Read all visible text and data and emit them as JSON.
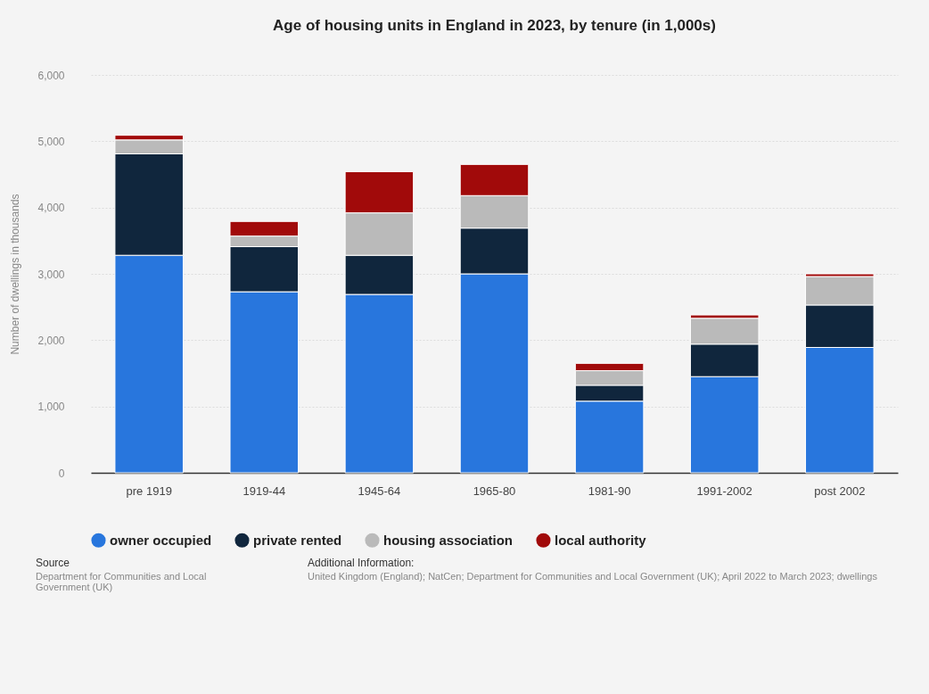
{
  "chart_data": {
    "type": "bar",
    "title": "Age of housing units in England in 2023, by tenure (in 1,000s)",
    "ylabel": "Number of dwellings in thousands",
    "categories": [
      "pre 1919",
      "1919-44",
      "1945-64",
      "1965-80",
      "1981-90",
      "1991-2002",
      "post 2002"
    ],
    "series": [
      {
        "name": "owner occupied",
        "color": "#2876dd",
        "values": [
          3280,
          2730,
          2690,
          3000,
          1080,
          1450,
          1890
        ]
      },
      {
        "name": "private rented",
        "color": "#10263d",
        "values": [
          1530,
          680,
          590,
          690,
          240,
          490,
          640
        ]
      },
      {
        "name": "housing association",
        "color": "#bababa",
        "values": [
          210,
          160,
          640,
          490,
          220,
          390,
          430
        ]
      },
      {
        "name": "local authority",
        "color": "#a10a0a",
        "values": [
          70,
          220,
          620,
          470,
          110,
          50,
          40
        ]
      }
    ],
    "stacked": true,
    "ylim": [
      0,
      6000
    ],
    "yticks": [
      {
        "value": 0,
        "label": "0"
      },
      {
        "value": 1000,
        "label": "1,000"
      },
      {
        "value": 2000,
        "label": "2,000"
      },
      {
        "value": 3000,
        "label": "3,000"
      },
      {
        "value": 4000,
        "label": "4,000"
      },
      {
        "value": 5000,
        "label": "5,000"
      },
      {
        "value": 6000,
        "label": "6,000"
      }
    ],
    "grid": "y",
    "legend": "bottom",
    "annotations": [
      "Source",
      "Department for Communities and Local Government (UK)",
      "Additional Information:",
      "United Kingdom (England); NatCen; Department for Communities and Local Government (UK); April 2022 to March 2023; dwellings"
    ]
  }
}
